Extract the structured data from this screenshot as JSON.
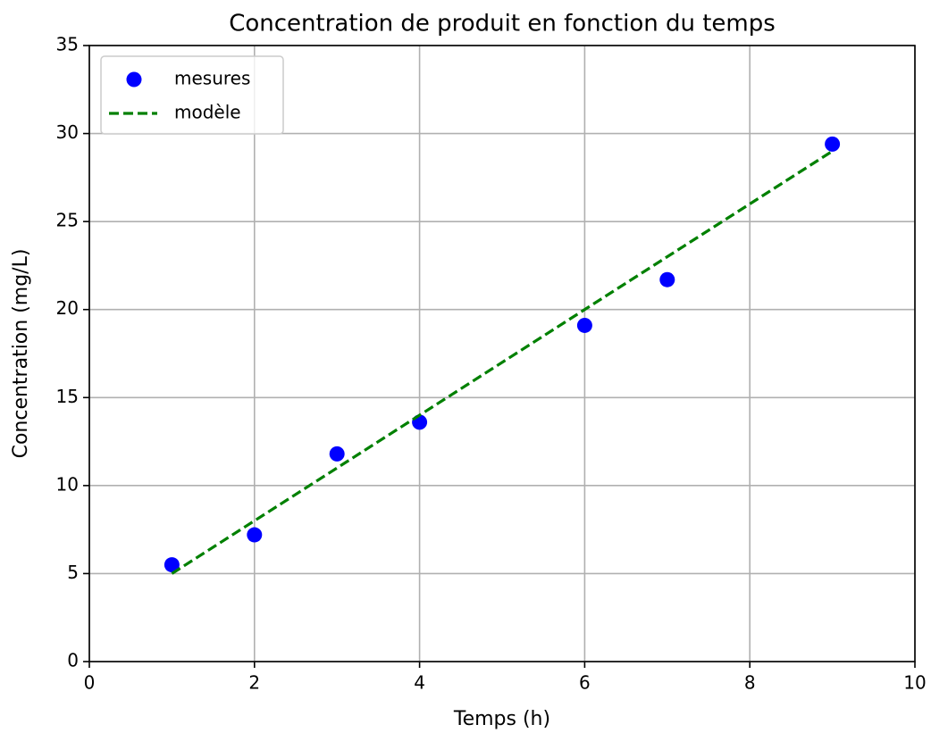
{
  "chart_data": {
    "type": "scatter",
    "title": "Concentration de produit en fonction du temps",
    "xlabel": "Temps (h)",
    "ylabel": "Concentration (mg/L)",
    "series": [
      {
        "name": "mesures",
        "type": "scatter",
        "color": "#0000ff",
        "x": [
          1,
          2,
          3,
          4,
          6,
          7,
          9
        ],
        "values": [
          5.5,
          7.2,
          11.8,
          13.6,
          19.1,
          21.7,
          29.4
        ]
      },
      {
        "name": "modèle",
        "type": "line",
        "color": "#008000",
        "dashed": true,
        "x": [
          1,
          9
        ],
        "values": [
          5,
          29
        ]
      }
    ],
    "xlim": [
      0,
      10
    ],
    "xticks": [
      0,
      2,
      4,
      6,
      8,
      10
    ],
    "ylim": [
      0,
      35
    ],
    "yticks": [
      0,
      5,
      10,
      15,
      20,
      25,
      30,
      35
    ],
    "grid": true,
    "legend": "upper left"
  }
}
